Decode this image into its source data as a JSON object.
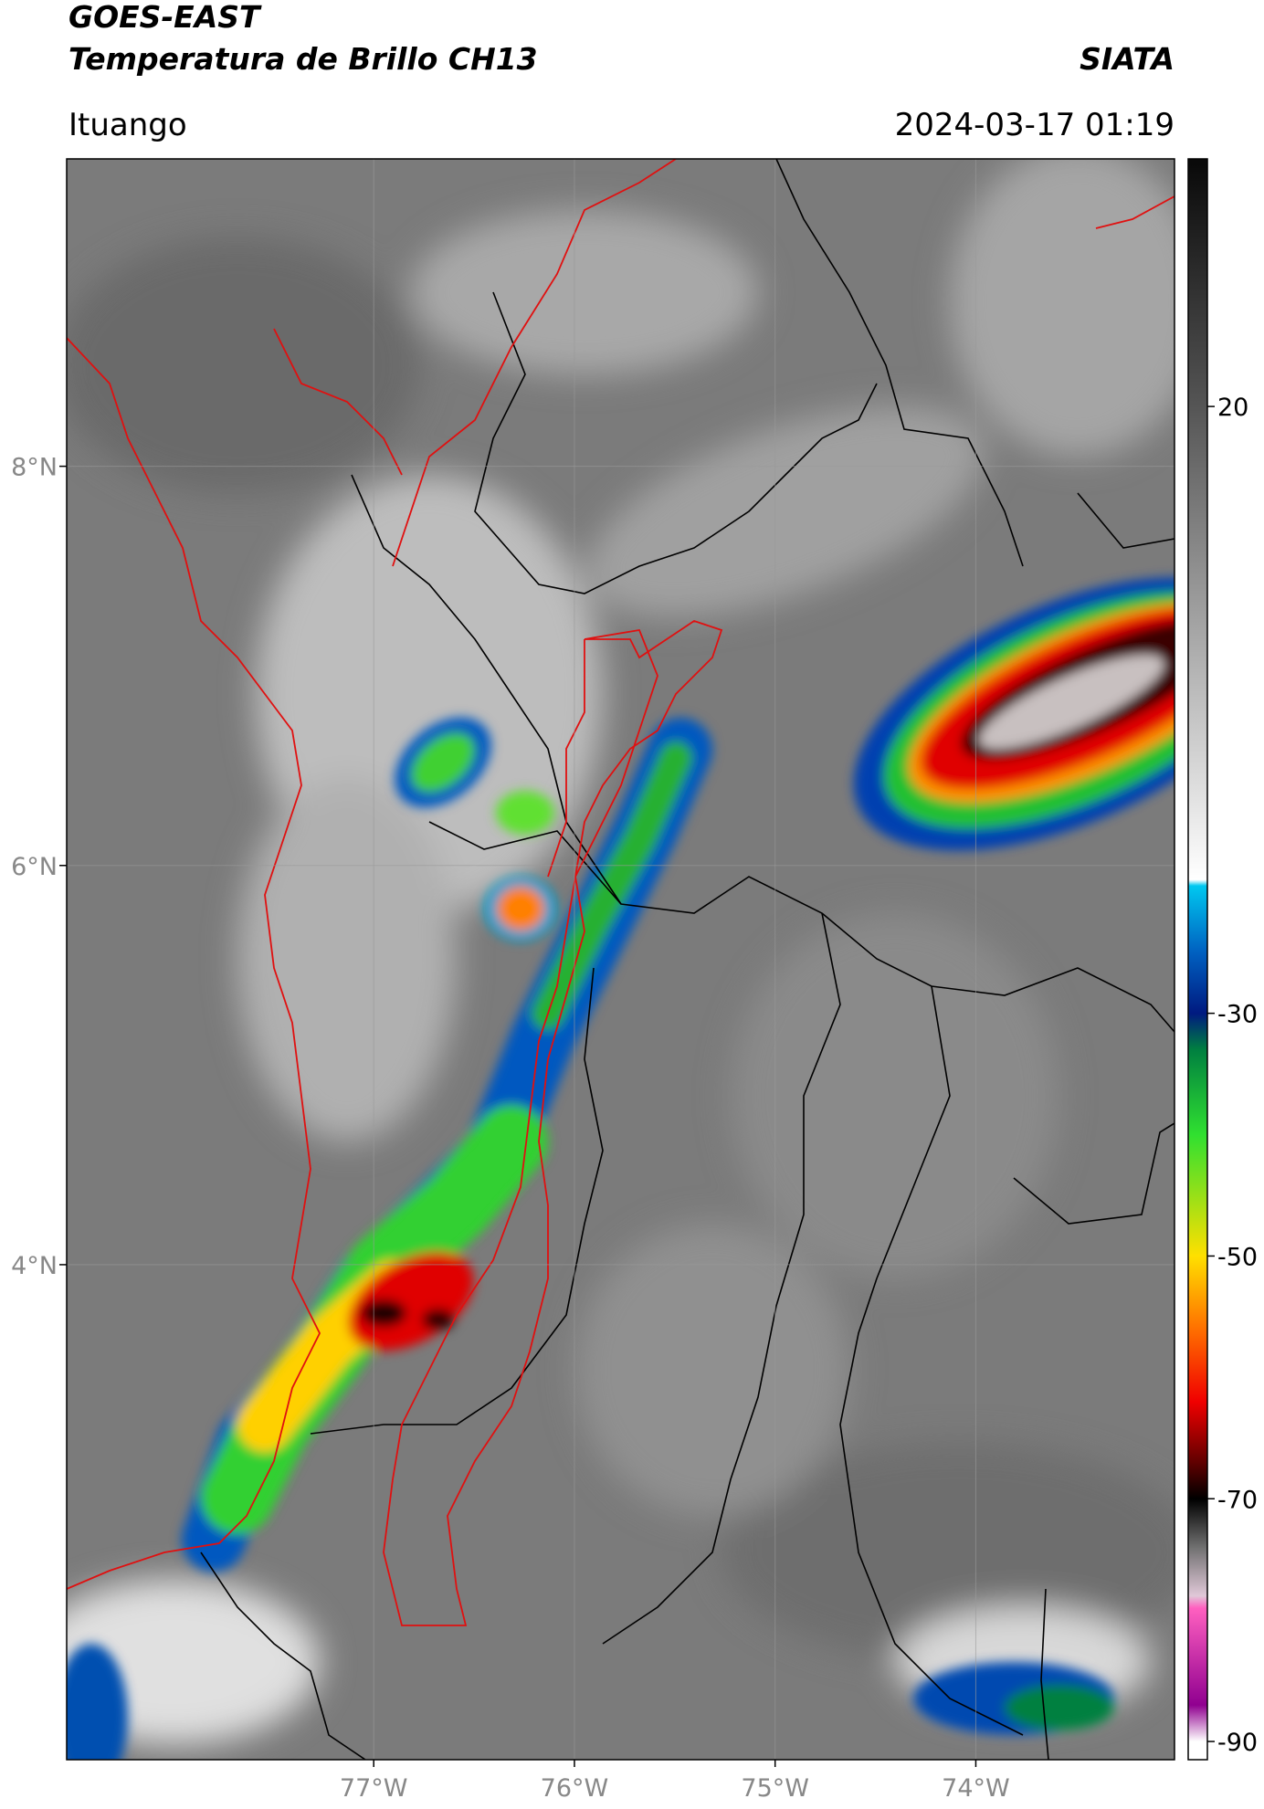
{
  "header": {
    "title": "GOES-EAST",
    "subtitle": "Temperatura de Brillo CH13",
    "brand": "SIATA",
    "location": "Ituango",
    "timestamp": "2024-03-17 01:19"
  },
  "chart_data": {
    "type": "map",
    "xlim": [
      -78.53,
      -73.01
    ],
    "ylim": [
      1.52,
      9.54
    ],
    "xticks": [
      {
        "value": -77,
        "label": "77°W"
      },
      {
        "value": -76,
        "label": "76°W"
      },
      {
        "value": -75,
        "label": "75°W"
      },
      {
        "value": -74,
        "label": "74°W"
      }
    ],
    "yticks": [
      {
        "value": 4,
        "label": "4°N"
      },
      {
        "value": 6,
        "label": "6°N"
      },
      {
        "value": 8,
        "label": "8°N"
      }
    ],
    "grid": true,
    "colorbar": {
      "lim": [
        -91.5,
        40.4
      ],
      "ticks": [
        -90,
        -70,
        -50,
        -30,
        20
      ],
      "colormap": [
        {
          "value": 40,
          "color": "#0a0a0a"
        },
        {
          "value": 20,
          "color": "#555555"
        },
        {
          "value": -19,
          "color": "#ffffff"
        },
        {
          "value": -19.5,
          "color": "#00c8f0"
        },
        {
          "value": -25,
          "color": "#0060c0"
        },
        {
          "value": -30,
          "color": "#001a80"
        },
        {
          "value": -33,
          "color": "#008040"
        },
        {
          "value": -40,
          "color": "#30e030"
        },
        {
          "value": -50,
          "color": "#ffe000"
        },
        {
          "value": -56,
          "color": "#ff7000"
        },
        {
          "value": -62,
          "color": "#f00000"
        },
        {
          "value": -67,
          "color": "#600000"
        },
        {
          "value": -70,
          "color": "#000000"
        },
        {
          "value": -74,
          "color": "#707070"
        },
        {
          "value": -78,
          "color": "#e0c8d8"
        },
        {
          "value": -79,
          "color": "#ff60c0"
        },
        {
          "value": -87,
          "color": "#900090"
        },
        {
          "value": -90,
          "color": "#ffffff"
        },
        {
          "value": -91.5,
          "color": "#ffffff"
        }
      ]
    }
  }
}
